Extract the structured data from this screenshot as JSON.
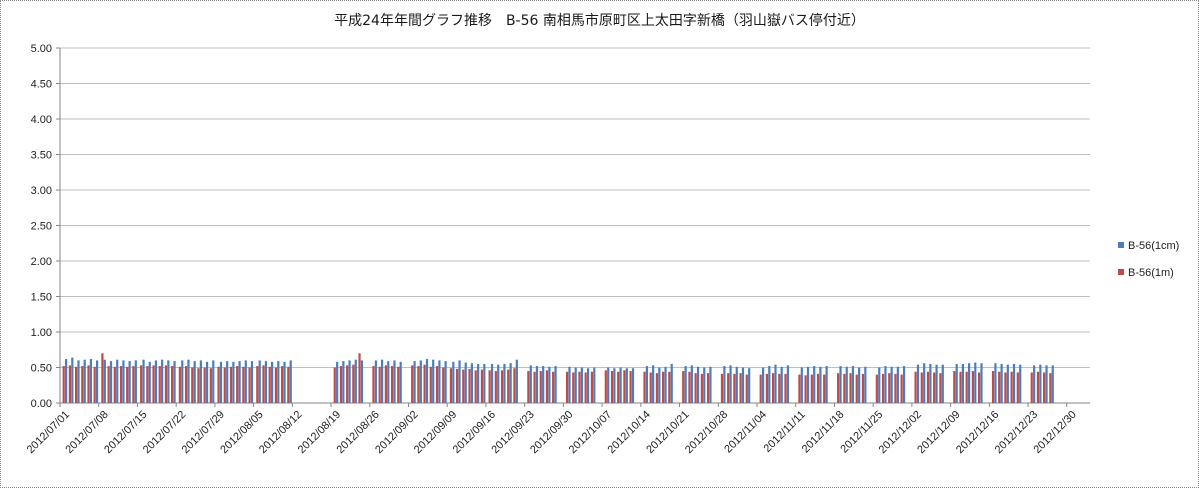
{
  "chart_data": {
    "type": "bar",
    "title": "平成24年年間グラフ推移　B-56 南相馬市原町区上太田字新橋（羽山嶽バス停付近）",
    "xlabel": "",
    "ylabel": "",
    "ylim": [
      0,
      5
    ],
    "y_ticks": [
      "0.00",
      "0.50",
      "1.00",
      "1.50",
      "2.00",
      "2.50",
      "3.00",
      "3.50",
      "4.00",
      "4.50",
      "5.00"
    ],
    "x_tick_labels": [
      "2012/07/01",
      "2012/07/08",
      "2012/07/15",
      "2012/07/22",
      "2012/07/29",
      "2012/08/05",
      "2012/08/12",
      "2012/08/19",
      "2012/08/26",
      "2012/09/02",
      "2012/09/09",
      "2012/09/16",
      "2012/09/23",
      "2012/09/30",
      "2012/10/07",
      "2012/10/14",
      "2012/10/21",
      "2012/10/28",
      "2012/11/04",
      "2012/11/11",
      "2012/11/18",
      "2012/11/25",
      "2012/12/02",
      "2012/12/09",
      "2012/12/16",
      "2012/12/23",
      "2012/12/30"
    ],
    "grid": true,
    "legend_position": "right",
    "colors": {
      "series1": "#4a7ebb",
      "series2": "#be4b48",
      "grid": "#bfbfbf",
      "axis": "#868686"
    },
    "series": [
      {
        "name": "B-56(1cm)",
        "values": [
          [
            0.62,
            0.64,
            0.6,
            0.61,
            0.62,
            0.6
          ],
          [
            0.61,
            0.59,
            0.61,
            0.6,
            0.59,
            0.6
          ],
          [
            0.61,
            0.58,
            0.6,
            0.61,
            0.6,
            0.59
          ],
          [
            0.6,
            0.61,
            0.59,
            0.6,
            0.58,
            0.6
          ],
          [
            0.58,
            0.59,
            0.58,
            0.59,
            0.6,
            0.59
          ],
          [
            0.6,
            0.59,
            0.58,
            0.59,
            0.58,
            0.6
          ],
          [],
          [
            0.58,
            0.59,
            0.6,
            0.61,
            0.6
          ],
          [
            0.6,
            0.61,
            0.59,
            0.6,
            0.58
          ],
          [
            0.59,
            0.6,
            0.62,
            0.61,
            0.6,
            0.59
          ],
          [
            0.58,
            0.6,
            0.57,
            0.56,
            0.55,
            0.55
          ],
          [
            0.55,
            0.54,
            0.55,
            0.56,
            0.61
          ],
          [
            0.53,
            0.52,
            0.52,
            0.51,
            0.52
          ],
          [
            0.51,
            0.5,
            0.5,
            0.49,
            0.5
          ],
          [
            0.5,
            0.49,
            0.5,
            0.49,
            0.49
          ],
          [
            0.52,
            0.53,
            0.5,
            0.51,
            0.55
          ],
          [
            0.52,
            0.53,
            0.51,
            0.5,
            0.51
          ],
          [
            0.52,
            0.53,
            0.51,
            0.5,
            0.49
          ],
          [
            0.5,
            0.52,
            0.54,
            0.51,
            0.53
          ],
          [
            0.5,
            0.51,
            0.52,
            0.51,
            0.52
          ],
          [
            0.52,
            0.51,
            0.52,
            0.5,
            0.51
          ],
          [
            0.5,
            0.52,
            0.51,
            0.51,
            0.52
          ],
          [
            0.54,
            0.56,
            0.55,
            0.54,
            0.54
          ],
          [
            0.55,
            0.55,
            0.56,
            0.57,
            0.56
          ],
          [
            0.56,
            0.55,
            0.54,
            0.55,
            0.54
          ],
          [
            0.53,
            0.54,
            0.53,
            0.53
          ],
          []
        ]
      },
      {
        "name": "B-56(1m)",
        "values": [
          [
            0.52,
            0.53,
            0.51,
            0.52,
            0.53,
            0.51
          ],
          [
            0.7,
            0.52,
            0.51,
            0.52,
            0.51,
            0.52
          ],
          [
            0.53,
            0.52,
            0.53,
            0.52,
            0.53,
            0.52
          ],
          [
            0.51,
            0.52,
            0.5,
            0.49,
            0.5,
            0.49
          ],
          [
            0.51,
            0.5,
            0.51,
            0.52,
            0.51,
            0.5
          ],
          [
            0.52,
            0.53,
            0.51,
            0.5,
            0.52,
            0.51
          ],
          [],
          [
            0.5,
            0.52,
            0.53,
            0.54,
            0.7
          ],
          [
            0.52,
            0.51,
            0.53,
            0.52,
            0.51
          ],
          [
            0.53,
            0.52,
            0.54,
            0.51,
            0.52,
            0.5
          ],
          [
            0.49,
            0.48,
            0.47,
            0.48,
            0.46,
            0.47
          ],
          [
            0.46,
            0.45,
            0.46,
            0.47,
            0.49
          ],
          [
            0.45,
            0.44,
            0.45,
            0.46,
            0.44
          ],
          [
            0.44,
            0.43,
            0.44,
            0.43,
            0.44
          ],
          [
            0.46,
            0.45,
            0.44,
            0.46,
            0.45
          ],
          [
            0.44,
            0.43,
            0.42,
            0.44,
            0.44
          ],
          [
            0.45,
            0.44,
            0.42,
            0.41,
            0.42
          ],
          [
            0.41,
            0.42,
            0.41,
            0.42,
            0.4
          ],
          [
            0.4,
            0.41,
            0.42,
            0.41,
            0.41
          ],
          [
            0.4,
            0.39,
            0.4,
            0.41,
            0.4
          ],
          [
            0.42,
            0.41,
            0.42,
            0.4,
            0.41
          ],
          [
            0.4,
            0.41,
            0.42,
            0.41,
            0.4
          ],
          [
            0.44,
            0.43,
            0.44,
            0.43,
            0.42
          ],
          [
            0.45,
            0.44,
            0.44,
            0.45,
            0.43
          ],
          [
            0.45,
            0.44,
            0.43,
            0.44,
            0.43
          ],
          [
            0.43,
            0.44,
            0.43,
            0.42
          ],
          []
        ]
      }
    ]
  }
}
